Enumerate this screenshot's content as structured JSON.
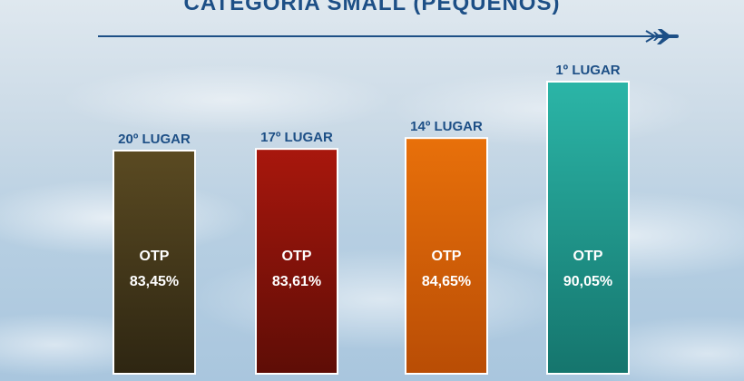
{
  "title": "CATEGORIA SMALL (PEQUENOS)",
  "chart_data": {
    "type": "bar",
    "title": "CATEGORIA SMALL (PEQUENOS)",
    "categories": [
      "20º LUGAR",
      "17º LUGAR",
      "14º LUGAR",
      "1º LUGAR"
    ],
    "metric_label": "OTP",
    "values": [
      83.45,
      83.61,
      84.65,
      90.05
    ],
    "value_labels": [
      "83,45%",
      "83,61%",
      "84,65%",
      "90,05%"
    ],
    "colors": [
      {
        "top": "#5a4a22",
        "bottom": "#2e2612"
      },
      {
        "top": "#a8170d",
        "bottom": "#5e0d06"
      },
      {
        "top": "#e8700a",
        "bottom": "#b94d05"
      },
      {
        "top": "#2bb5a7",
        "bottom": "#15756d"
      }
    ],
    "label_color": "#1d4f86",
    "grid": false
  }
}
